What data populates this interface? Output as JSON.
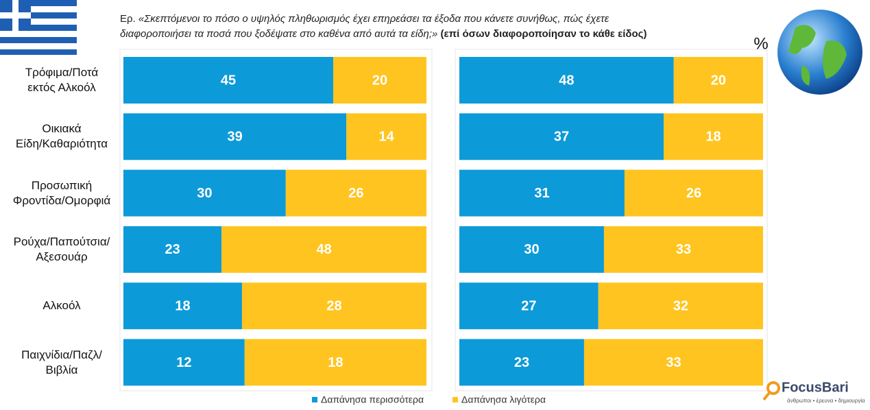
{
  "question_prefix": "Ερ.",
  "question_lines": [
    "«Σκεπτόμενοι το πόσο ο υψηλός πληθωρισμός έχει επηρεάσει τα έξοδα που κάνετε συνήθως, πώς έχετε",
    "διαφοροποιήσει τα ποσά που ξοδέψατε στο καθένα από αυτά τα είδη;»"
  ],
  "question_note": "(επί όσων διαφοροποίησαν το κάθε είδος)",
  "unit_label": "%",
  "logo": "FocusBari",
  "logo_tagline": "άνθρωποι • έρευνα • δημιουργία",
  "chart_data": [
    {
      "type": "bar",
      "stacked": true,
      "normalized": true,
      "categories": [
        "Τρόφιμα/Ποτά\nεκτός Αλκοόλ",
        "Οικιακά\nΕίδη/Καθαριότητα",
        "Προσωπική\nΦροντίδα/Ομορφιά",
        "Ρούχα/Παπούτσια/\nΑξεσουάρ",
        "Αλκοόλ",
        "Παιχνίδια/Παζλ/\nΒιβλία"
      ],
      "series": [
        {
          "name": "Δαπάνησα περισσότερα",
          "color": "#0d9ad8",
          "values": [
            45,
            39,
            30,
            23,
            18,
            12
          ]
        },
        {
          "name": "Δαπάνησα λιγότερα",
          "color": "#ffc41f",
          "values": [
            20,
            14,
            26,
            48,
            28,
            18
          ]
        }
      ]
    },
    {
      "type": "bar",
      "stacked": true,
      "normalized": true,
      "series": [
        {
          "name": "Δαπάνησα περισσότερα",
          "color": "#0d9ad8",
          "values": [
            48,
            37,
            31,
            30,
            27,
            23
          ]
        },
        {
          "name": "Δαπάνησα λιγότερα",
          "color": "#ffc41f",
          "values": [
            20,
            18,
            26,
            33,
            32,
            33
          ]
        }
      ]
    }
  ]
}
